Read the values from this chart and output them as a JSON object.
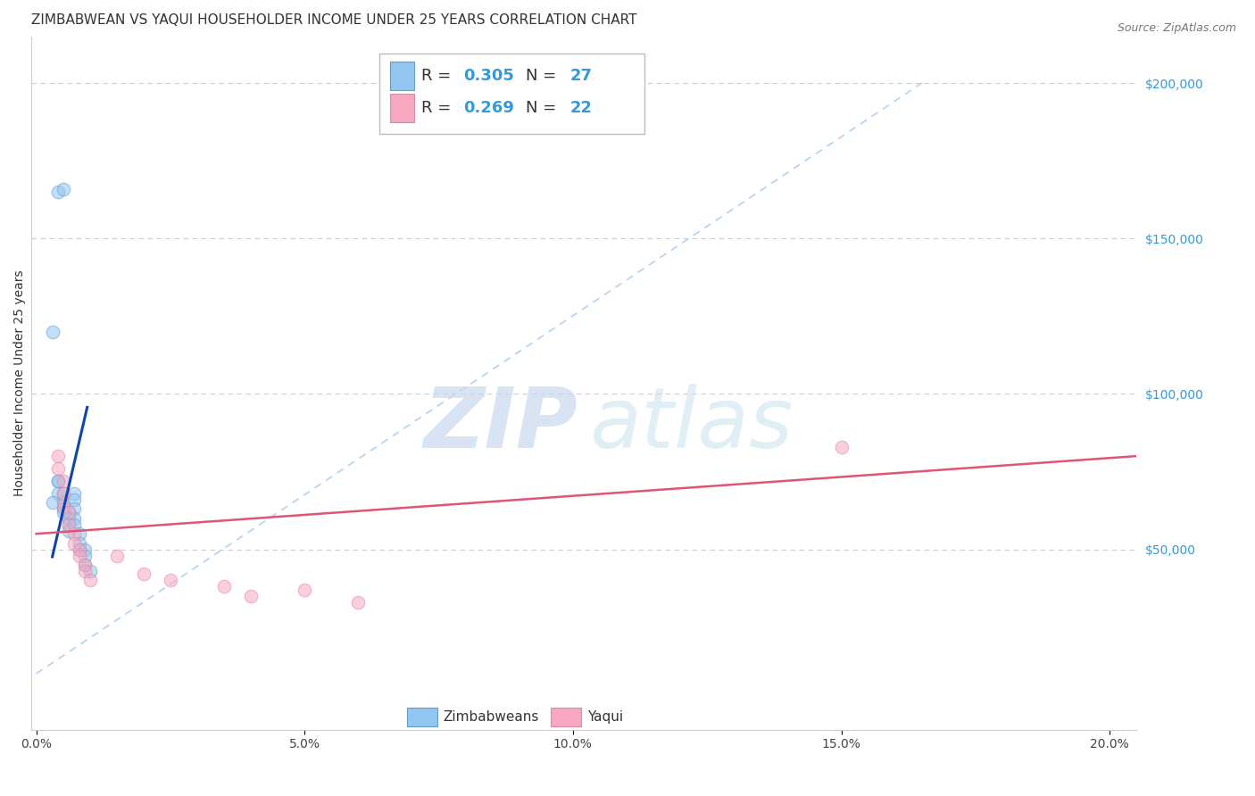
{
  "title": "ZIMBABWEAN VS YAQUI HOUSEHOLDER INCOME UNDER 25 YEARS CORRELATION CHART",
  "source": "Source: ZipAtlas.com",
  "ylabel": "Householder Income Under 25 years",
  "xlim_min": -0.001,
  "xlim_max": 0.205,
  "ylim_min": -8000,
  "ylim_max": 215000,
  "xticks": [
    0.0,
    0.05,
    0.1,
    0.15,
    0.2
  ],
  "xticklabels": [
    "0.0%",
    "5.0%",
    "10.0%",
    "15.0%",
    "20.0%"
  ],
  "yticks_right": [
    50000,
    100000,
    150000,
    200000
  ],
  "ytick_labels_right": [
    "$50,000",
    "$100,000",
    "$150,000",
    "$200,000"
  ],
  "grid_color": "#cccccc",
  "blue_color": "#92c5f0",
  "blue_edge": "#6699cc",
  "pink_color": "#f5a8c0",
  "pink_edge": "#dd88aa",
  "blue_line_color": "#1144aa",
  "pink_line_color": "#e05575",
  "ref_line_color": "#aaccee",
  "title_color": "#333333",
  "title_fontsize": 11,
  "source_fontsize": 9,
  "axis_label_fontsize": 10,
  "marker_size": 110,
  "marker_alpha": 0.55,
  "zimb_x": [
    0.004,
    0.005,
    0.003,
    0.004,
    0.004,
    0.003,
    0.004,
    0.005,
    0.005,
    0.005,
    0.006,
    0.005,
    0.006,
    0.006,
    0.006,
    0.007,
    0.007,
    0.007,
    0.007,
    0.007,
    0.008,
    0.008,
    0.008,
    0.009,
    0.009,
    0.009,
    0.01
  ],
  "zimb_y": [
    165000,
    166000,
    120000,
    72000,
    68000,
    65000,
    72000,
    68000,
    65000,
    63000,
    62000,
    62000,
    60000,
    58000,
    56000,
    68000,
    66000,
    63000,
    60000,
    58000,
    55000,
    52000,
    50000,
    50000,
    48000,
    45000,
    43000
  ],
  "yaqui_x": [
    0.004,
    0.004,
    0.005,
    0.005,
    0.005,
    0.006,
    0.006,
    0.007,
    0.007,
    0.008,
    0.008,
    0.009,
    0.009,
    0.01,
    0.015,
    0.02,
    0.025,
    0.035,
    0.04,
    0.05,
    0.06,
    0.15
  ],
  "yaqui_y": [
    80000,
    76000,
    72000,
    68000,
    64000,
    62000,
    58000,
    55000,
    52000,
    50000,
    48000,
    45000,
    43000,
    40000,
    48000,
    42000,
    40000,
    38000,
    35000,
    37000,
    33000,
    83000
  ],
  "blue_line_x": [
    0.004,
    0.009
  ],
  "blue_line_y": [
    55000,
    92000
  ],
  "pink_line_x0": 0.0,
  "pink_line_x1": 0.205,
  "pink_line_y0": 55000,
  "pink_line_y1": 80000,
  "ref_line_x0": 0.0,
  "ref_line_x1": 0.165,
  "ref_line_y0": 10000,
  "ref_line_y1": 200000,
  "legend_r1": "0.305",
  "legend_n1": "27",
  "legend_r2": "0.269",
  "legend_n2": "22",
  "watermark_zip_color": "#c8d8ee",
  "watermark_atlas_color": "#c8e0ee",
  "right_tick_color": "#3399dd"
}
